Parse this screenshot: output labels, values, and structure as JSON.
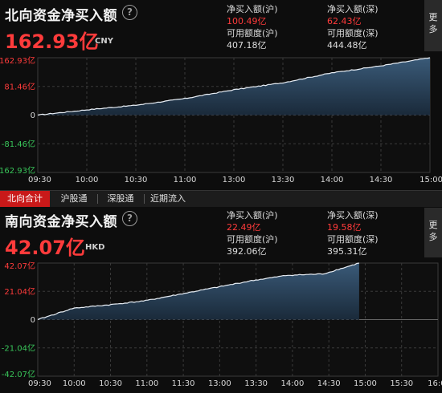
{
  "north": {
    "title": "北向资金净买入额",
    "help_icon": "?",
    "total": "162.93亿",
    "currency": "CNY",
    "sh_net_label": "净买入额(沪)",
    "sh_net_value": "100.49亿",
    "sz_net_label": "净买入额(深)",
    "sz_net_value": "62.43亿",
    "sh_quota_label": "可用额度(沪)",
    "sh_quota_value": "407.18亿",
    "sz_quota_label": "可用额度(深)",
    "sz_quota_value": "444.48亿",
    "more_label": "更多"
  },
  "tabs": [
    "北向合计",
    "沪股通",
    "深股通",
    "近期流入"
  ],
  "south": {
    "title": "南向资金净买入额",
    "help_icon": "?",
    "total": "42.07亿",
    "currency": "HKD",
    "sh_net_label": "净买入额(沪)",
    "sh_net_value": "22.49亿",
    "sz_net_label": "净买入额(深)",
    "sz_net_value": "19.58亿",
    "sh_quota_label": "可用额度(沪)",
    "sh_quota_value": "392.06亿",
    "sz_quota_label": "可用额度(深)",
    "sz_quota_value": "395.31亿",
    "more_label": "更多"
  },
  "colors": {
    "up": "#ff3b3b",
    "down": "#39c65a",
    "line": "#e8eef5",
    "fill_top": "#3a5a78",
    "fill_bottom": "#1a2a3a",
    "tab_active": "#c91919"
  },
  "chart_data": [
    {
      "type": "area",
      "title": "北向资金净买入额",
      "yticks": [
        "162.93亿",
        "81.46亿",
        "0",
        "-81.46亿",
        "-162.93亿"
      ],
      "ylim": [
        -162.93,
        162.93
      ],
      "xticks": [
        "09:30",
        "10:00",
        "10:30",
        "11:00",
        "13:00",
        "13:30",
        "14:00",
        "14:30",
        "15:00"
      ],
      "x": [
        "09:30",
        "10:00",
        "10:30",
        "11:00",
        "11:30/13:00",
        "13:30",
        "14:00",
        "14:30",
        "15:00"
      ],
      "values": [
        0,
        15,
        28,
        47,
        72,
        92,
        120,
        140,
        162.93
      ]
    },
    {
      "type": "area",
      "title": "南向资金净买入额",
      "yticks": [
        "42.07亿",
        "21.04亿",
        "0",
        "-21.04亿",
        "-42.07亿"
      ],
      "ylim": [
        -42.07,
        42.07
      ],
      "xticks": [
        "09:30",
        "10:00",
        "10:30",
        "11:00",
        "11:30",
        "13:00",
        "13:30",
        "14:00",
        "14:30",
        "15:00",
        "15:30",
        "16:00"
      ],
      "x": [
        "09:30",
        "10:00",
        "10:30",
        "11:00",
        "11:30",
        "13:00",
        "13:30",
        "14:00",
        "14:30",
        "15:00"
      ],
      "values": [
        0,
        8.5,
        11,
        14,
        19,
        24,
        29,
        33,
        34,
        42.07
      ]
    }
  ]
}
